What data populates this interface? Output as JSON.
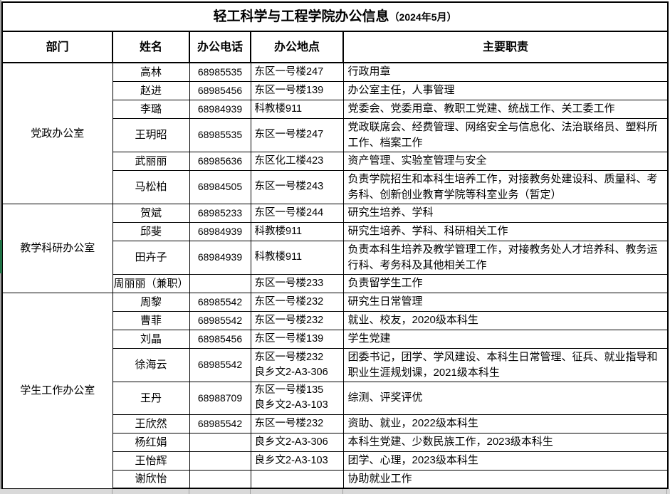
{
  "title": {
    "main": "轻工科学与工程学院办公信息",
    "date": "（2024年5月）"
  },
  "columns": [
    "部门",
    "姓名",
    "办公电话",
    "办公地点",
    "主要职责"
  ],
  "sections": [
    {
      "department": "党政办公室",
      "rows": [
        {
          "name": "高林",
          "phone": "68985535",
          "location": "东区一号楼247",
          "duty": "行政用章"
        },
        {
          "name": "赵进",
          "phone": "68985456",
          "location": "东区一号楼139",
          "duty": "办公室主任，人事管理"
        },
        {
          "name": "李璐",
          "phone": "68984939",
          "location": "科教楼911",
          "duty": "党委会、党委用章、教职工党建、统战工作、关工委工作"
        },
        {
          "name": "王玥昭",
          "phone": "68985535",
          "location": "东区一号楼247",
          "duty": "党政联席会、经费管理、网络安全与信息化、法治联络员、塑料所工作、档案工作"
        },
        {
          "name": "武丽丽",
          "phone": "68985636",
          "location": "东区化工楼423",
          "duty": "资产管理、实验室管理与安全"
        },
        {
          "name": "马松柏",
          "phone": "68984505",
          "location": "东区一号楼243",
          "duty": "负责学院招生和本科生培养工作，对接教务处建设科、质量科、考务科、创新创业教育学院等科室业务（暂定）"
        }
      ]
    },
    {
      "department": "教学科研办公室",
      "rows": [
        {
          "name": "贺斌",
          "phone": "68985233",
          "location": "东区一号楼244",
          "duty": "研究生培养、学科"
        },
        {
          "name": "邱斐",
          "phone": "68984939",
          "location": "科教楼911",
          "duty": "研究生培养、学科、科研相关工作"
        },
        {
          "name": "田卉子",
          "phone": "68984939",
          "location": "科教楼911",
          "duty": "负责本科生培养及教学管理工作，对接教务处人才培养科、教务运行科、考务科及其他相关工作"
        },
        {
          "name": "周丽丽（兼职）",
          "phone": "",
          "location": "东区一号楼233",
          "duty": "负责留学生工作"
        }
      ]
    },
    {
      "department": "学生工作办公室",
      "rows": [
        {
          "name": "周黎",
          "phone": "68985542",
          "location": "东区一号楼232",
          "duty": "研究生日常管理"
        },
        {
          "name": "曹菲",
          "phone": "68985542",
          "location": "东区一号楼232",
          "duty": "就业、校友，2020级本科生"
        },
        {
          "name": "刘晶",
          "phone": "68985456",
          "location": "东区一号楼139",
          "duty": "学生党建"
        },
        {
          "name": "徐海云",
          "phone": "68985542",
          "location": [
            "东区一号楼232",
            "良乡文2-A3-306"
          ],
          "duty": "团委书记，团学、学风建设、本科生日常管理、征兵、就业指导和职业生涯规划课，2021级本科生"
        },
        {
          "name": "王丹",
          "phone": "68988709",
          "location": [
            "东区一号楼135",
            "良乡文2-A3-103"
          ],
          "duty": "综测、评奖评优"
        },
        {
          "name": "王欣然",
          "phone": "68985542",
          "location": "东区一号楼232",
          "duty": "资助、就业，2022级本科生"
        },
        {
          "name": "杨红娟",
          "phone": "",
          "location": "良乡文2-A3-306",
          "duty": "本科生党建、少数民族工作，2023级本科生"
        },
        {
          "name": "王怡辉",
          "phone": "",
          "location": "良乡文2-A3-103",
          "duty": "团学、心理，2023级本科生"
        },
        {
          "name": "谢欣怡",
          "phone": "",
          "location": "",
          "duty": "协助就业工作"
        }
      ]
    }
  ],
  "colors": {
    "border": "#000000",
    "background": "#ffffff",
    "edge_gray": "#a6a6a6",
    "edge_green": "#217346",
    "bottom_strip": "#d9d9d9"
  }
}
